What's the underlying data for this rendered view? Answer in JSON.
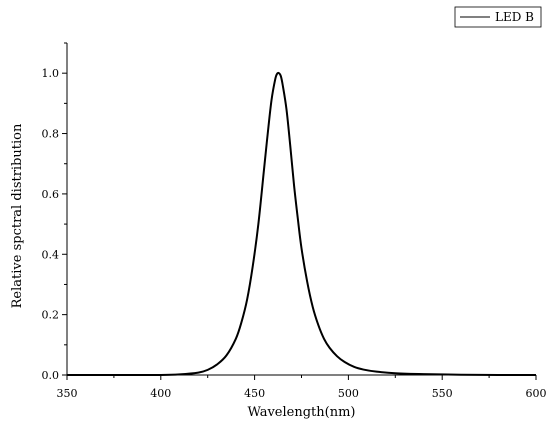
{
  "chart_data": {
    "type": "line",
    "title": "",
    "xlabel": "Wavelength(nm)",
    "ylabel": "Relative spctral distribution",
    "xlim": [
      350,
      600
    ],
    "ylim": [
      0,
      1.1
    ],
    "x_ticks": [
      350,
      400,
      450,
      500,
      550,
      600
    ],
    "x_tick_labels": [
      "350",
      "400",
      "450",
      "500",
      "550",
      "600"
    ],
    "y_ticks": [
      0,
      0.2,
      0.4,
      0.6,
      0.8,
      1.0
    ],
    "y_tick_labels": [
      "0.0",
      "0.2",
      "0.4",
      "0.6",
      "0.8",
      "1.0"
    ],
    "grid": false,
    "legend_position": "top-right",
    "series": [
      {
        "name": "LED B",
        "color": "#000000",
        "x": [
          350,
          380,
          400,
          410,
          420,
          425,
          430,
          435,
          440,
          443,
          446,
          449,
          452,
          455,
          457,
          459,
          461,
          462,
          463,
          464,
          465,
          467,
          469,
          471,
          473,
          475,
          478,
          481,
          484,
          487,
          490,
          494,
          498,
          503,
          508,
          515,
          525,
          540,
          560,
          580,
          600
        ],
        "y": [
          0,
          0,
          0,
          0.002,
          0.008,
          0.017,
          0.035,
          0.065,
          0.12,
          0.175,
          0.25,
          0.36,
          0.5,
          0.68,
          0.8,
          0.91,
          0.98,
          0.998,
          1.0,
          0.99,
          0.96,
          0.88,
          0.76,
          0.63,
          0.52,
          0.42,
          0.31,
          0.225,
          0.165,
          0.12,
          0.09,
          0.062,
          0.043,
          0.027,
          0.018,
          0.011,
          0.006,
          0.003,
          0.001,
          0,
          0
        ]
      }
    ]
  }
}
